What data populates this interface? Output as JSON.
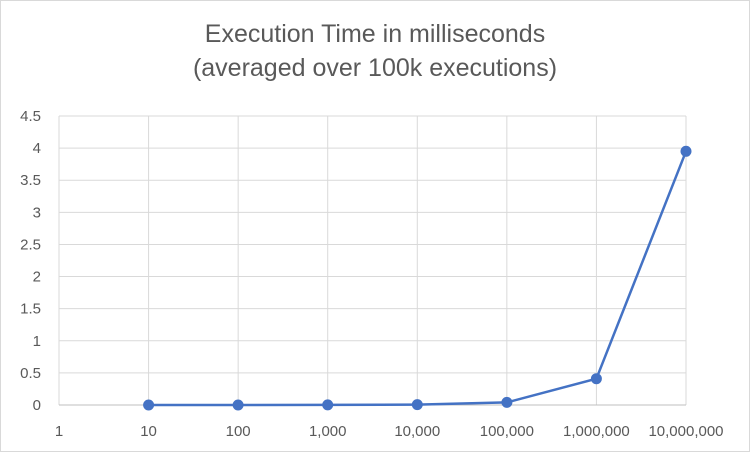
{
  "chart_data": {
    "type": "line",
    "title": "Execution Time in milliseconds",
    "subtitle": "(averaged over 100k executions)",
    "xlabel": "",
    "ylabel": "",
    "x_scale": "log",
    "x_tick_labels": [
      "1",
      "10",
      "100",
      "1,000",
      "10,000",
      "100,000",
      "1,000,000",
      "10,000,000"
    ],
    "y_tick_labels": [
      "0",
      "0.5",
      "1",
      "1.5",
      "2",
      "2.5",
      "3",
      "3.5",
      "4",
      "4.5"
    ],
    "ylim": [
      0,
      4.5
    ],
    "grid": true,
    "legend": "none",
    "series": [
      {
        "color": "#4472c4",
        "x": [
          10,
          100,
          1000,
          10000,
          100000,
          1000000,
          10000000
        ],
        "y": [
          0.0002,
          0.0005,
          0.002,
          0.006,
          0.04,
          0.41,
          3.95
        ]
      }
    ]
  }
}
